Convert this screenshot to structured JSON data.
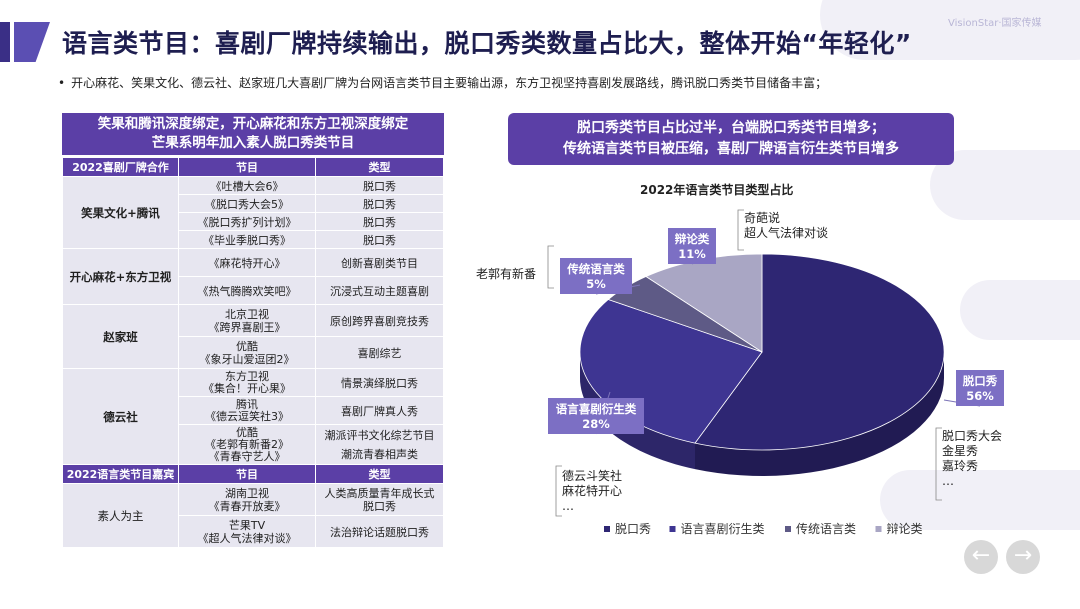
{
  "header": {
    "title": "语言类节目：喜剧厂牌持续输出，脱口秀类数量占比大，整体开始“年轻化”",
    "logo": "VisionStar·国家传媒",
    "bullet": "开心麻花、笑果文化、德云社、赵家班几大喜剧厂牌为台网语言类节目主要输出源，东方卫视坚持喜剧发展路线，腾讯脱口秀类节目储备丰富；"
  },
  "left_panel": {
    "headline_1": "笑果和腾讯深度绑定，开心麻花和东方卫视深度绑定",
    "headline_2": "芒果系明年加入素人脱口秀类节目",
    "table1_headers": [
      "2022喜剧厂牌合作",
      "节目",
      "类型"
    ],
    "groups": [
      {
        "name": "笑果文化+腾讯",
        "rows": [
          {
            "program": "《吐槽大会6》",
            "type": "脱口秀"
          },
          {
            "program": "《脱口秀大会5》",
            "type": "脱口秀"
          },
          {
            "program": "《脱口秀扩列计划》",
            "type": "脱口秀"
          },
          {
            "program": "《毕业季脱口秀》",
            "type": "脱口秀"
          }
        ]
      },
      {
        "name": "开心麻花+东方卫视",
        "rows": [
          {
            "program": "《麻花特开心》",
            "type": "创新喜剧类节目"
          },
          {
            "program": "《热气腾腾欢笑吧》",
            "type": "沉浸式互动主题喜剧"
          }
        ]
      },
      {
        "name": "赵家班",
        "rows": [
          {
            "program": "北京卫视\n《跨界喜剧王》",
            "type": "原创跨界喜剧竞技秀"
          },
          {
            "program": "优酷\n《象牙山爱逗团2》",
            "type": "喜剧综艺"
          }
        ]
      },
      {
        "name": "德云社",
        "rows": [
          {
            "program": "东方卫视\n《集合！开心果》",
            "type": "情景演绎脱口秀"
          },
          {
            "program": "腾讯\n《德云逗笑社3》",
            "type": "喜剧厂牌真人秀"
          },
          {
            "program": "优酷\n《老郭有新番2》\n《青春守艺人》",
            "type": "潮派评书文化综艺节目\n潮流青春相声类"
          }
        ]
      }
    ],
    "table2_headers": [
      "2022语言类节目嘉宾",
      "节目",
      "类型"
    ],
    "guest_group": {
      "name": "素人为主",
      "rows": [
        {
          "program": "湖南卫视\n《青春开放麦》",
          "type": "人类高质量青年成长式\n脱口秀"
        },
        {
          "program": "芒果TV\n《超人气法律对谈》",
          "type": "法治辩论话题脱口秀"
        }
      ]
    }
  },
  "right_panel": {
    "headline_1": "脱口秀类节目占比过半，台端脱口秀类节目增多；",
    "headline_2": "传统语言类节目被压缩，喜剧厂牌语言衍生类节目增多"
  },
  "chart_data": {
    "type": "pie",
    "title": "2022年语言类节目类型占比",
    "slices": [
      {
        "label": "脱口秀",
        "value": 56,
        "color": "#2e2673",
        "examples": [
          "脱口秀大会",
          "金星秀",
          "嘉玲秀",
          "…"
        ]
      },
      {
        "label": "语言喜剧衍生类",
        "value": 28,
        "color": "#3e3592",
        "examples": [
          "德云斗笑社",
          "麻花特开心",
          "…"
        ]
      },
      {
        "label": "传统语言类",
        "value": 5,
        "color": "#5e5a86",
        "examples": [
          "老郭有新番"
        ]
      },
      {
        "label": "辩论类",
        "value": 11,
        "color": "#a9a6c4",
        "examples": [
          "奇葩说",
          "超人气法律对谈"
        ]
      }
    ],
    "legend": [
      "脱口秀",
      "语言喜剧衍生类",
      "传统语言类",
      "辩论类"
    ],
    "legend_position": "bottom"
  },
  "nav": {
    "prev": "←",
    "next": "→"
  }
}
